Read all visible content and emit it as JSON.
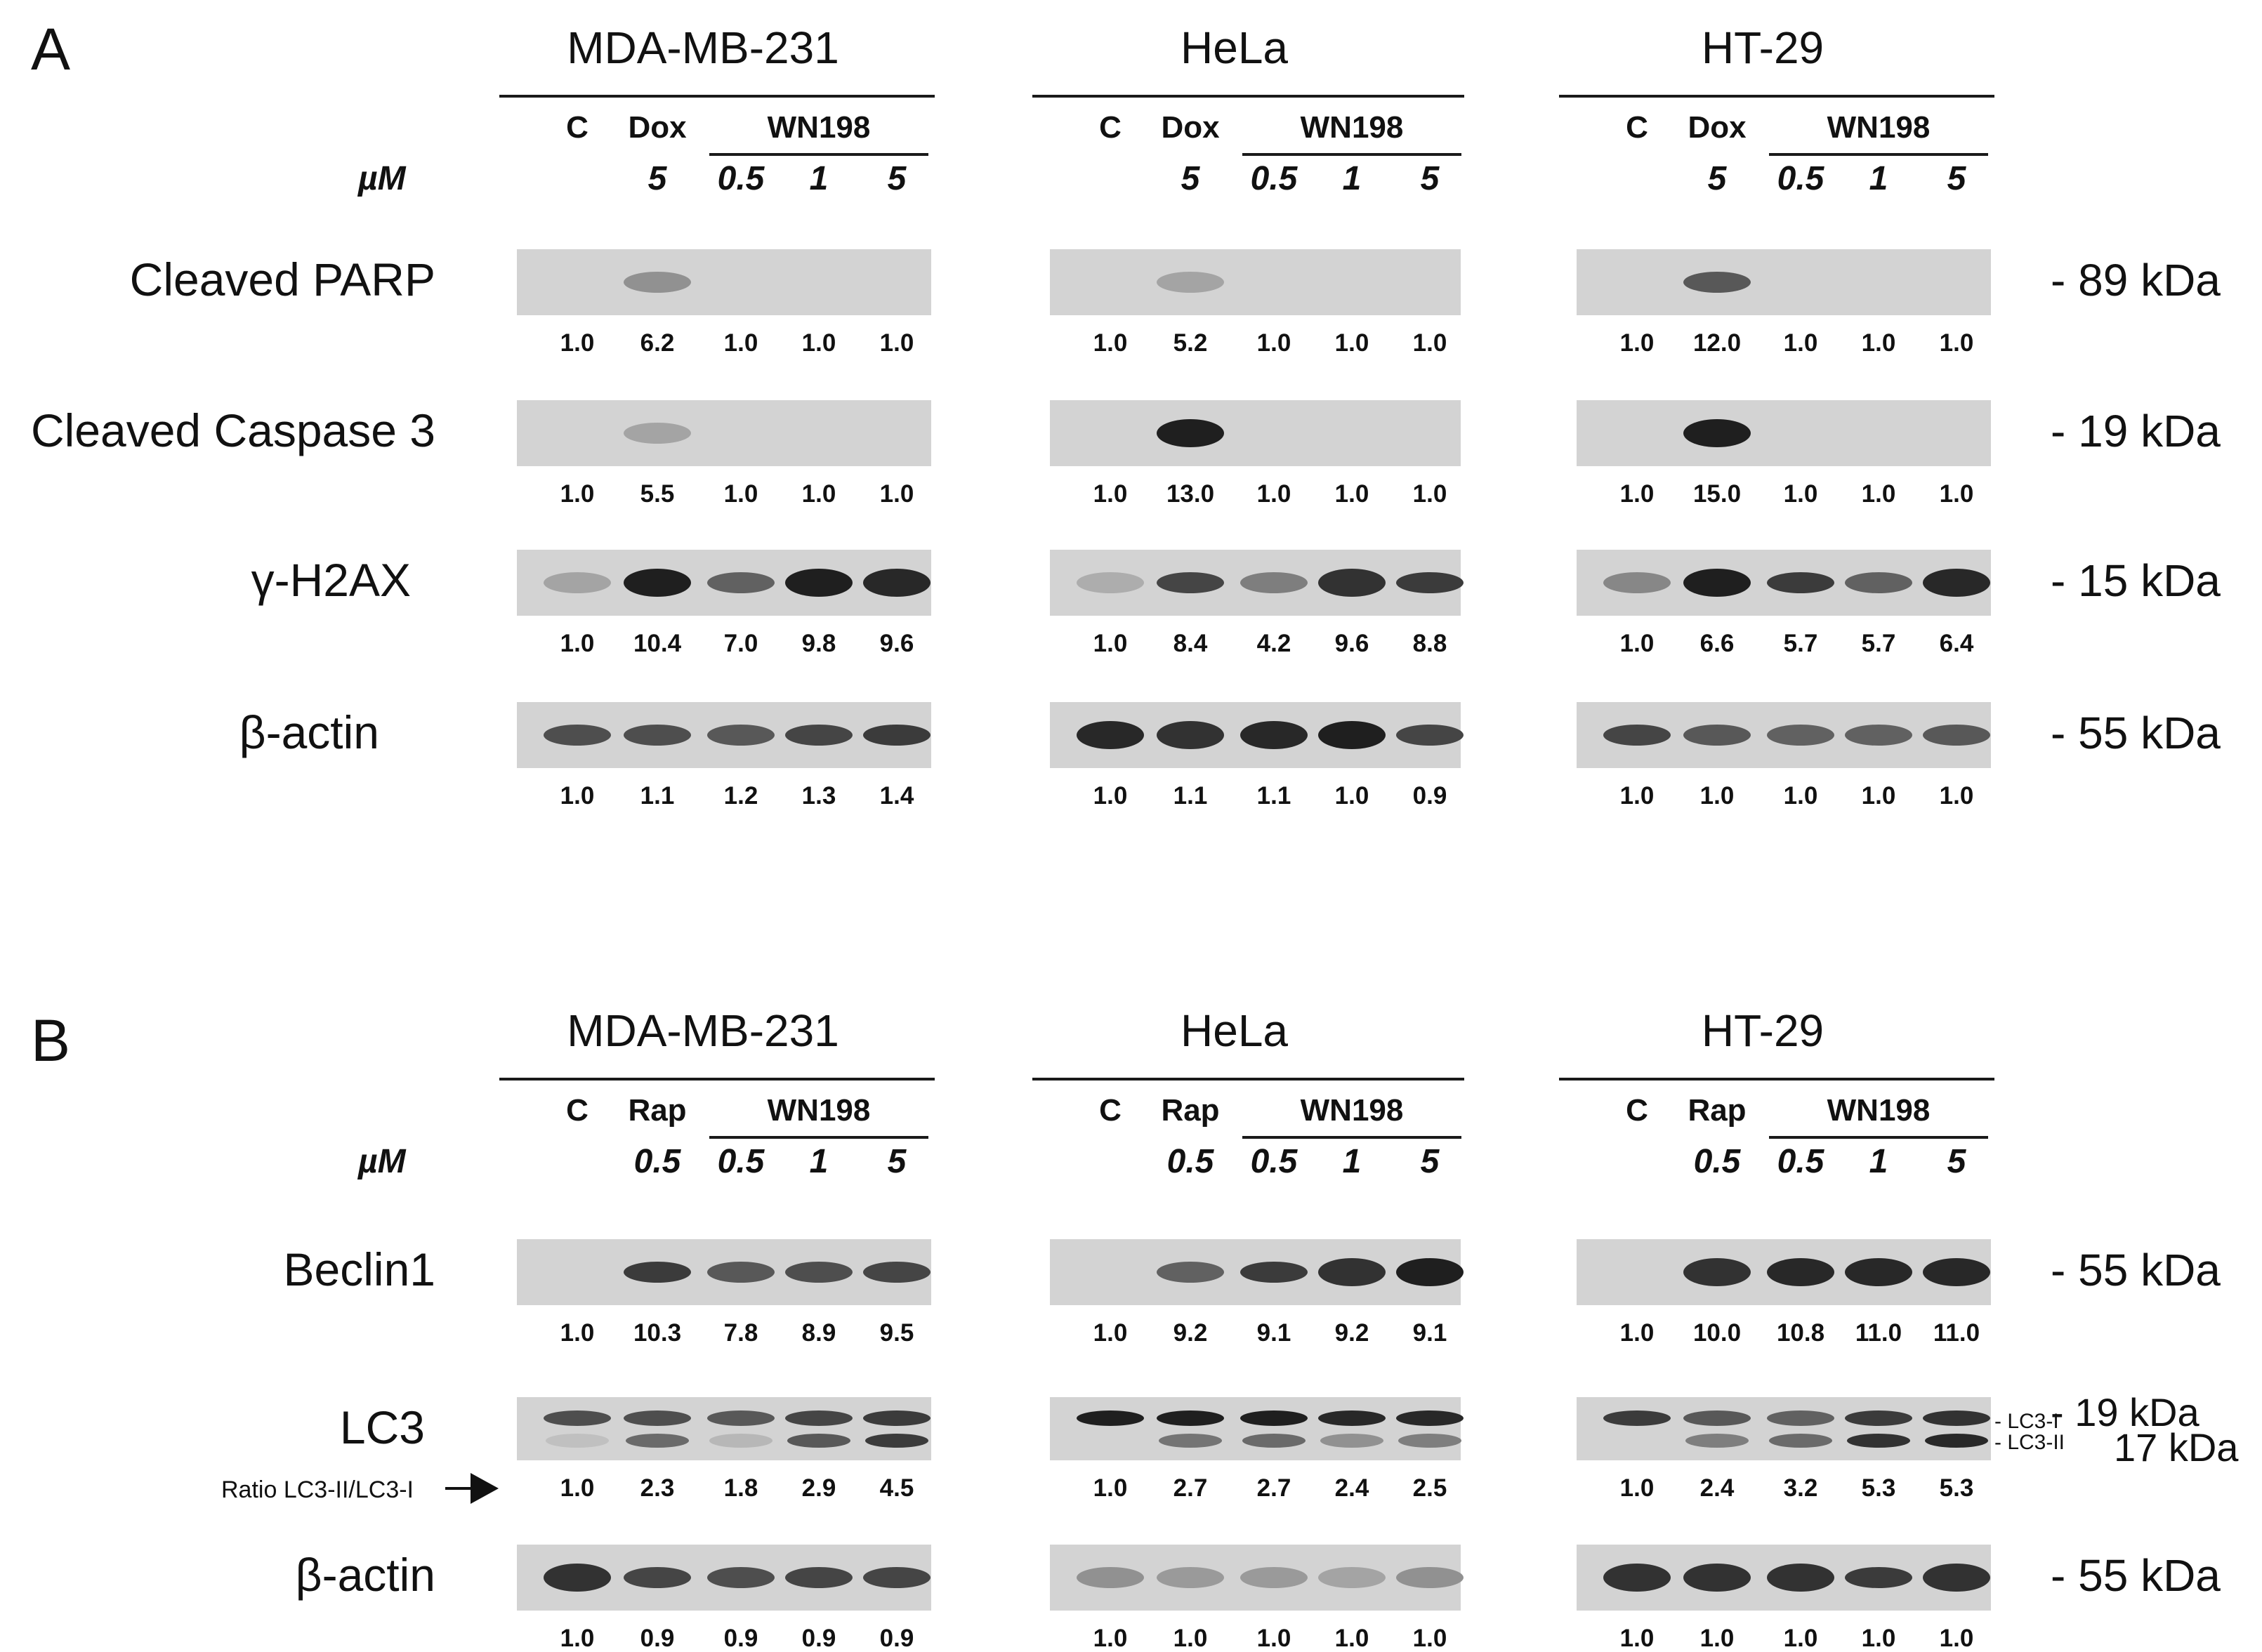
{
  "panels": [
    {
      "letter": "A",
      "cell_lines": [
        "MDA-MB-231",
        "HeLa",
        "HT-29"
      ],
      "unit_label": "µM",
      "conditions": {
        "control": "C",
        "positive": "Dox",
        "compound": "WN198"
      },
      "doses": [
        "5",
        "0.5",
        "1",
        "5"
      ],
      "rows": [
        {
          "label": "Cleaved PARP",
          "kda": "- 89 kDa",
          "quant": [
            [
              "1.0",
              "6.2",
              "1.0",
              "1.0",
              "1.0"
            ],
            [
              "1.0",
              "5.2",
              "1.0",
              "1.0",
              "1.0"
            ],
            [
              "1.0",
              "12.0",
              "1.0",
              "1.0",
              "1.0"
            ]
          ],
          "band_intensity": [
            [
              0.0,
              0.35,
              0.0,
              0.0,
              0.0
            ],
            [
              0.0,
              0.25,
              0.0,
              0.0,
              0.0
            ],
            [
              0.0,
              0.65,
              0.0,
              0.0,
              0.0
            ]
          ]
        },
        {
          "label": "Cleaved Caspase 3",
          "kda": "- 19 kDa",
          "quant": [
            [
              "1.0",
              "5.5",
              "1.0",
              "1.0",
              "1.0"
            ],
            [
              "1.0",
              "13.0",
              "1.0",
              "1.0",
              "1.0"
            ],
            [
              "1.0",
              "15.0",
              "1.0",
              "1.0",
              "1.0"
            ]
          ],
          "band_intensity": [
            [
              0.0,
              0.25,
              0.0,
              0.0,
              0.0
            ],
            [
              0.0,
              0.95,
              0.0,
              0.0,
              0.0
            ],
            [
              0.0,
              0.95,
              0.0,
              0.0,
              0.0
            ]
          ]
        },
        {
          "label": "γ-H2AX",
          "kda": "- 15 kDa",
          "quant": [
            [
              "1.0",
              "10.4",
              "7.0",
              "9.8",
              "9.6"
            ],
            [
              "1.0",
              "8.4",
              "4.2",
              "9.6",
              "8.8"
            ],
            [
              "1.0",
              "6.6",
              "5.7",
              "5.7",
              "6.4"
            ]
          ],
          "band_intensity": [
            [
              0.25,
              0.95,
              0.6,
              0.95,
              0.9
            ],
            [
              0.2,
              0.75,
              0.45,
              0.85,
              0.8
            ],
            [
              0.4,
              0.95,
              0.8,
              0.6,
              0.9
            ]
          ]
        },
        {
          "label": "β-actin",
          "kda": "- 55 kDa",
          "quant": [
            [
              "1.0",
              "1.1",
              "1.2",
              "1.3",
              "1.4"
            ],
            [
              "1.0",
              "1.1",
              "1.1",
              "1.0",
              "0.9"
            ],
            [
              "1.0",
              "1.0",
              "1.0",
              "1.0",
              "1.0"
            ]
          ],
          "band_intensity": [
            [
              0.7,
              0.7,
              0.65,
              0.75,
              0.8
            ],
            [
              0.9,
              0.85,
              0.9,
              0.95,
              0.75
            ],
            [
              0.75,
              0.65,
              0.6,
              0.6,
              0.65
            ]
          ]
        }
      ]
    },
    {
      "letter": "B",
      "cell_lines": [
        "MDA-MB-231",
        "HeLa",
        "HT-29"
      ],
      "unit_label": "µM",
      "conditions": {
        "control": "C",
        "positive": "Rap",
        "compound": "WN198"
      },
      "doses": [
        "0.5",
        "0.5",
        "1",
        "5"
      ],
      "rows": [
        {
          "label": "Beclin1",
          "kda": "- 55 kDa",
          "quant": [
            [
              "1.0",
              "10.3",
              "7.8",
              "8.9",
              "9.5"
            ],
            [
              "1.0",
              "9.2",
              "9.1",
              "9.2",
              "9.1"
            ],
            [
              "1.0",
              "10.0",
              "10.8",
              "11.0",
              "11.0"
            ]
          ],
          "band_intensity": [
            [
              0.0,
              0.8,
              0.65,
              0.7,
              0.75
            ],
            [
              0.0,
              0.6,
              0.8,
              0.85,
              0.95
            ],
            [
              0.0,
              0.85,
              0.9,
              0.9,
              0.9
            ]
          ]
        },
        {
          "label": "LC3",
          "kda": "- 19 kDa",
          "kda2": "17 kDa",
          "band_tags": [
            "- LC3-I",
            "- LC3-II"
          ],
          "ratio_label": "Ratio LC3-II/LC3-I",
          "quant": [
            [
              "1.0",
              "2.3",
              "1.8",
              "2.9",
              "4.5"
            ],
            [
              "1.0",
              "2.7",
              "2.7",
              "2.4",
              "2.5"
            ],
            [
              "1.0",
              "2.4",
              "3.2",
              "5.3",
              "5.3"
            ]
          ],
          "band_intensity": [
            [
              0.7,
              0.7,
              0.65,
              0.75,
              0.8
            ],
            [
              0.95,
              0.95,
              0.95,
              0.9,
              0.9
            ],
            [
              0.8,
              0.65,
              0.6,
              0.8,
              0.85
            ]
          ],
          "band2_intensity": [
            [
              0.1,
              0.55,
              0.15,
              0.65,
              0.8
            ],
            [
              0.0,
              0.5,
              0.55,
              0.35,
              0.45
            ],
            [
              0.0,
              0.45,
              0.55,
              0.85,
              0.9
            ]
          ]
        },
        {
          "label": "β-actin",
          "kda": "- 55 kDa",
          "quant": [
            [
              "1.0",
              "0.9",
              "0.9",
              "0.9",
              "0.9"
            ],
            [
              "1.0",
              "1.0",
              "1.0",
              "1.0",
              "1.0"
            ],
            [
              "1.0",
              "1.0",
              "1.0",
              "1.0",
              "1.0"
            ]
          ],
          "band_intensity": [
            [
              0.85,
              0.75,
              0.7,
              0.75,
              0.75
            ],
            [
              0.35,
              0.3,
              0.3,
              0.25,
              0.35
            ],
            [
              0.85,
              0.85,
              0.85,
              0.8,
              0.85
            ]
          ]
        }
      ]
    }
  ]
}
